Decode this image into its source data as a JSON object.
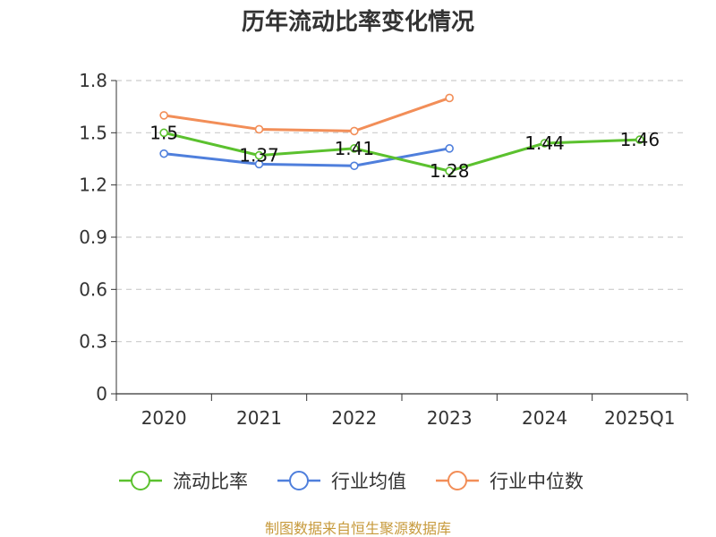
{
  "chart_data": {
    "type": "line",
    "title": "历年流动比率变化情况",
    "categories": [
      "2020",
      "2021",
      "2022",
      "2023",
      "2024",
      "2025Q1"
    ],
    "y_ticks": [
      "0",
      "0.3",
      "0.6",
      "0.9",
      "1.2",
      "1.5",
      "1.8"
    ],
    "ylim": [
      0,
      1.8
    ],
    "grid": true,
    "legend_position": "bottom",
    "series": [
      {
        "name": "流动比率",
        "color": "#5bc12e",
        "values": [
          1.5,
          1.37,
          1.41,
          1.28,
          1.44,
          1.46
        ],
        "labels": [
          "1.5",
          "1.37",
          "1.41",
          "1.28",
          "1.44",
          "1.46"
        ]
      },
      {
        "name": "行业均值",
        "color": "#4f7fdc",
        "values": [
          1.38,
          1.32,
          1.31,
          1.41,
          null,
          null
        ]
      },
      {
        "name": "行业中位数",
        "color": "#f28e58",
        "values": [
          1.6,
          1.52,
          1.51,
          1.7,
          null,
          null
        ]
      }
    ]
  },
  "source_text": "制图数据来自恒生聚源数据库"
}
